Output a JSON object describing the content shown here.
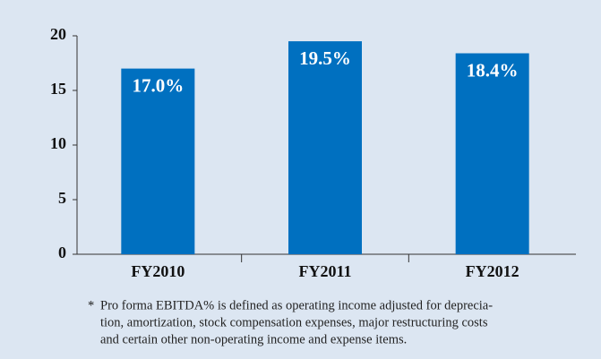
{
  "chart_data": {
    "type": "bar",
    "categories": [
      "FY2010",
      "FY2011",
      "FY2012"
    ],
    "values": [
      17.0,
      19.5,
      18.4
    ],
    "value_labels": [
      "17.0%",
      "19.5%",
      "18.4%"
    ],
    "color": "#0070c0",
    "ylim": [
      0,
      20
    ],
    "yticks": [
      0,
      5,
      10,
      15,
      20
    ],
    "grid": false,
    "footnote_marker": "*",
    "footnote_lines": [
      "Pro forma EBITDA% is defined as operating income adjusted for deprecia-",
      "tion, amortization, stock compensation expenses, major restructuring costs",
      "and certain other non-operating income and expense items."
    ]
  }
}
